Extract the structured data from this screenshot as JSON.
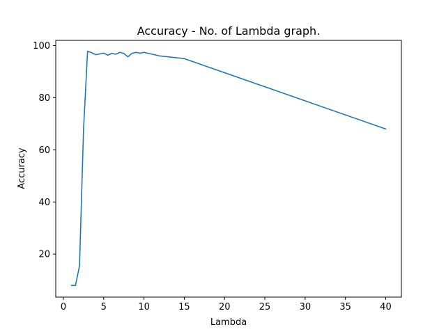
{
  "chart_data": {
    "type": "line",
    "title": "Accuracy - No. of Lambda graph.",
    "xlabel": "Lambda",
    "ylabel": "Accuracy",
    "xlim": [
      -0.95,
      41.95
    ],
    "ylim": [
      3.5,
      102
    ],
    "xticks": [
      0,
      5,
      10,
      15,
      20,
      25,
      30,
      35,
      40
    ],
    "yticks": [
      20,
      40,
      60,
      80,
      100
    ],
    "grid": false,
    "line_color": "#1f77b4",
    "series": [
      {
        "x": [
          1,
          1.5,
          2,
          2.5,
          3,
          3.5,
          4,
          4.5,
          5,
          5.5,
          6,
          6.5,
          7,
          7.5,
          8,
          8.5,
          9,
          9.5,
          10,
          12,
          15,
          40
        ],
        "y": [
          8,
          8,
          15.5,
          68,
          97.8,
          97.3,
          96.5,
          96.8,
          97.1,
          96.3,
          97.0,
          96.7,
          97.4,
          97.0,
          95.7,
          97.0,
          97.4,
          97.1,
          97.4,
          96.0,
          95.0,
          68.0
        ]
      }
    ]
  }
}
